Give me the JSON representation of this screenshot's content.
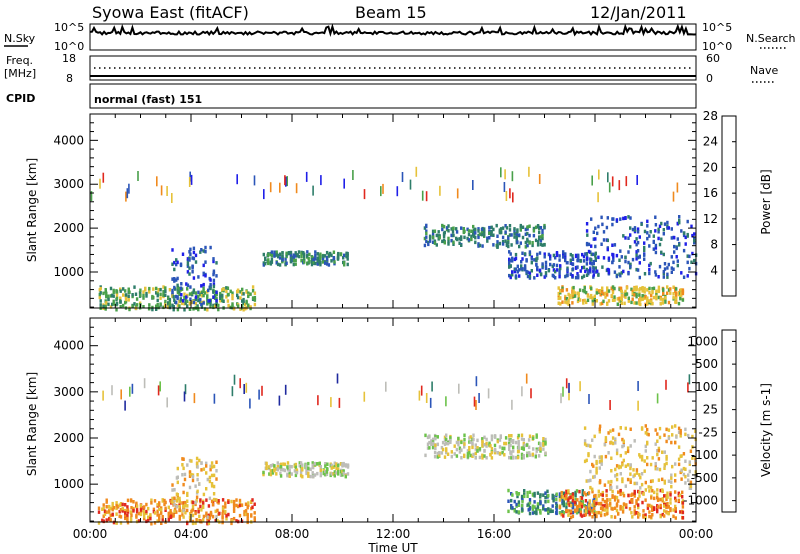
{
  "header": {
    "station": "Syowa East (fitACF)",
    "beam": "Beam 15",
    "date": "12/Jan/2011"
  },
  "panels": {
    "nsky": {
      "left_label": "N.Sky",
      "right_label": "N.Search",
      "y_top": "10^5",
      "y_bottom": "10^0"
    },
    "freq": {
      "left_label_line1": "Freq.",
      "left_label_line2": "[MHz]",
      "right_label": "Nave",
      "y_left_top": "18",
      "y_left_bottom": "8",
      "y_right_top": "60",
      "y_right_bottom": "0"
    },
    "cpid": {
      "label": "CPID",
      "mode": "normal (fast) 151"
    }
  },
  "chart_data": [
    {
      "type": "heatmap",
      "title": "",
      "xlabel": "",
      "ylabel": "Slant Range [km]",
      "colorbar_label": "Power [dB]",
      "x_ticks": [
        "00:00",
        "04:00",
        "08:00",
        "12:00",
        "16:00",
        "20:00",
        "00:00"
      ],
      "y_ticks": [
        1000,
        2000,
        3000,
        4000
      ],
      "ylim": [
        180,
        4600
      ],
      "xlim_hours": [
        0,
        24
      ],
      "colorbar_ticks": [
        4,
        8,
        12,
        16,
        20,
        24,
        28
      ],
      "colorbar_colors": [
        "#1f1fe8",
        "#2b55b8",
        "#2e7d6a",
        "#49a04a",
        "#e6c23a",
        "#f08a1e",
        "#e0281e"
      ],
      "regions": [
        {
          "t": [
            0.3,
            6.5
          ],
          "r": [
            180,
            700
          ],
          "level": 3
        },
        {
          "t": [
            3.2,
            5.0
          ],
          "r": [
            300,
            1600
          ],
          "level": 1
        },
        {
          "t": [
            6.8,
            10.2
          ],
          "r": [
            1200,
            1500
          ],
          "level": 2
        },
        {
          "t": [
            13.2,
            18.0
          ],
          "r": [
            1600,
            2100
          ],
          "level": 2
        },
        {
          "t": [
            16.5,
            20.0
          ],
          "r": [
            900,
            1500
          ],
          "level": 1
        },
        {
          "t": [
            18.5,
            23.5
          ],
          "r": [
            300,
            700
          ],
          "level": 4
        },
        {
          "t": [
            19.5,
            24.0
          ],
          "r": [
            900,
            2300
          ],
          "level": 1
        }
      ]
    },
    {
      "type": "heatmap",
      "title": "",
      "xlabel": "Time UT",
      "ylabel": "Slant Range [km]",
      "colorbar_label": "Velocity [m s-1]",
      "x_ticks": [
        "00:00",
        "04:00",
        "08:00",
        "12:00",
        "16:00",
        "20:00",
        "00:00"
      ],
      "y_ticks": [
        1000,
        2000,
        3000,
        4000
      ],
      "ylim": [
        180,
        4600
      ],
      "xlim_hours": [
        0,
        24
      ],
      "colorbar_ticks": [
        "1000",
        "500",
        "100",
        "25",
        "-25",
        "-100",
        "-500",
        "-1000"
      ],
      "colorbar_colors": [
        "#1f2a9e",
        "#2b55b8",
        "#2e7d6a",
        "#6cc24a",
        "#bdbdb8",
        "#e6c23a",
        "#f08a1e",
        "#e0281e"
      ],
      "regions": [
        {
          "t": [
            0.3,
            6.5
          ],
          "r": [
            180,
            700
          ],
          "level": 6
        },
        {
          "t": [
            3.2,
            5.0
          ],
          "r": [
            300,
            1600
          ],
          "level": 5
        },
        {
          "t": [
            6.8,
            10.2
          ],
          "r": [
            1200,
            1500
          ],
          "level": 4
        },
        {
          "t": [
            13.2,
            18.0
          ],
          "r": [
            1600,
            2100
          ],
          "level": 4
        },
        {
          "t": [
            16.5,
            20.0
          ],
          "r": [
            400,
            900
          ],
          "level": 2
        },
        {
          "t": [
            18.5,
            23.5
          ],
          "r": [
            300,
            900
          ],
          "level": 6
        },
        {
          "t": [
            19.5,
            24.0
          ],
          "r": [
            900,
            2300
          ],
          "level": 5
        }
      ]
    }
  ]
}
